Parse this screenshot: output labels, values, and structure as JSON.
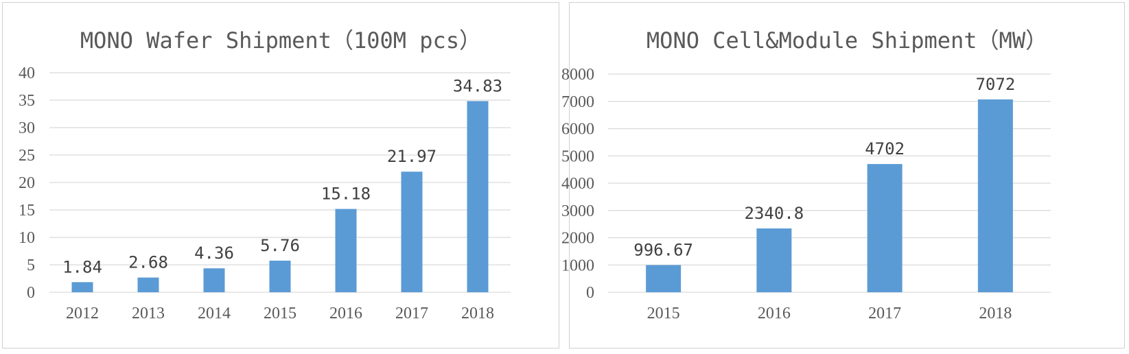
{
  "chart_data": [
    {
      "type": "bar",
      "title": "MONO Wafer Shipment（100M pcs）",
      "categories": [
        "2012",
        "2013",
        "2014",
        "2015",
        "2016",
        "2017",
        "2018"
      ],
      "values": [
        1.84,
        2.68,
        4.36,
        5.76,
        15.18,
        21.97,
        34.83
      ],
      "data_labels": [
        "1.84",
        "2.68",
        "4.36",
        "5.76",
        "15.18",
        "21.97",
        "34.83"
      ],
      "ylim": [
        0,
        40
      ],
      "yticks": [
        "0",
        "5",
        "10",
        "15",
        "20",
        "25",
        "30",
        "35",
        "40"
      ],
      "ytick_values": [
        0,
        5,
        10,
        15,
        20,
        25,
        30,
        35,
        40
      ],
      "xlabel": "",
      "ylabel": "",
      "grid": true,
      "legend": "none",
      "bar_color": "#5b9bd5",
      "grid_color": "#d9d9d9"
    },
    {
      "type": "bar",
      "title": "MONO Cell&Module Shipment（MW）",
      "categories": [
        "2015",
        "2016",
        "2017",
        "2018"
      ],
      "values": [
        996.67,
        2340.8,
        4702,
        7072
      ],
      "data_labels": [
        "996.67",
        "2340.8",
        "4702",
        "7072"
      ],
      "ylim": [
        0,
        8000
      ],
      "yticks": [
        "0",
        "1000",
        "2000",
        "3000",
        "4000",
        "5000",
        "6000",
        "7000",
        "8000"
      ],
      "ytick_values": [
        0,
        1000,
        2000,
        3000,
        4000,
        5000,
        6000,
        7000,
        8000
      ],
      "xlabel": "",
      "ylabel": "",
      "grid": true,
      "legend": "none",
      "bar_color": "#5b9bd5",
      "grid_color": "#d9d9d9"
    }
  ]
}
